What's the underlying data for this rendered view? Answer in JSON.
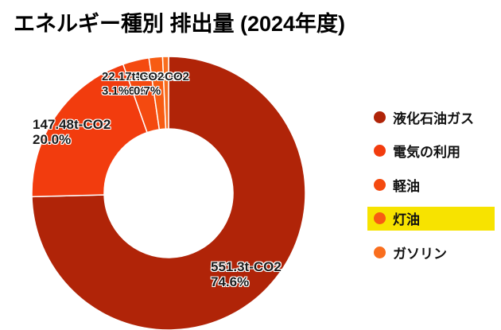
{
  "title": "エネルギー種別 排出量 (2024年度)",
  "chart_data": {
    "type": "pie",
    "subtype": "donut",
    "title": "エネルギー種別 排出量 (2024年度)",
    "unit": "t-CO2",
    "legend_position": "right",
    "start_angle_deg": 0,
    "direction": "clockwise",
    "slice_border_color": "#ffffff",
    "highlight_color": "#f7e300",
    "series": [
      {
        "name": "液化石油ガス",
        "value": 551.3,
        "percent": 74.6,
        "value_label": "551.3t-CO2",
        "percent_label": "74.6%",
        "color": "#b02408",
        "highlighted": false
      },
      {
        "name": "電気の利用",
        "value": 147.48,
        "percent": 20.0,
        "value_label": "147.48t-CO2",
        "percent_label": "20.0%",
        "color": "#f23c0e",
        "highlighted": false
      },
      {
        "name": "軽油",
        "value": 22.17,
        "percent": 3.1,
        "value_label": "22.17t-CO2",
        "percent_label": "3.1%",
        "color": "#f44a10",
        "highlighted": false
      },
      {
        "name": "灯油",
        "value": 11.84,
        "percent": 1.6,
        "value_label": "11.84t-CO2",
        "percent_label": "1.6%",
        "color": "#f75c13",
        "highlighted": true
      },
      {
        "name": "ガソリン",
        "value": 4.99,
        "percent": 0.7,
        "value_label": "4.99t-CO2",
        "percent_label": "0.7%",
        "color": "#f96e1e",
        "highlighted": false
      }
    ]
  }
}
